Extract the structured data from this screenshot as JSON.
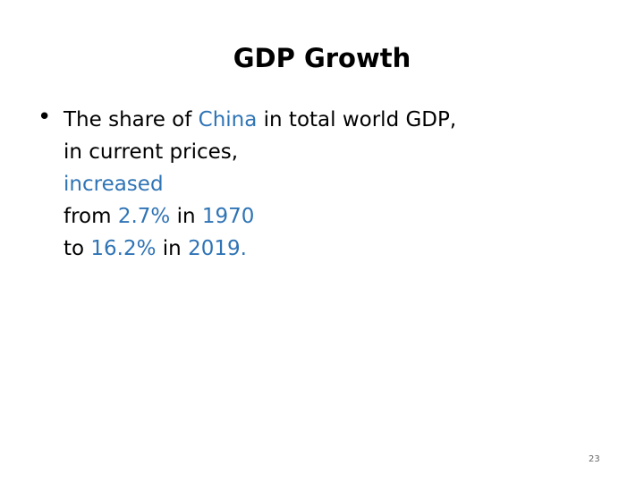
{
  "slide": {
    "title": "GDP Growth",
    "bullet": {
      "lines": [
        [
          {
            "text": "The share of ",
            "color": "#000000"
          },
          {
            "text": "China",
            "color": "#2f74b5"
          },
          {
            "text": " in total world GDP,",
            "color": "#000000"
          }
        ],
        [
          {
            "text": "in current prices,",
            "color": "#000000"
          }
        ],
        [
          {
            "text": "increased",
            "color": "#2f74b5"
          }
        ],
        [
          {
            "text": "from ",
            "color": "#000000"
          },
          {
            "text": "2.7%",
            "color": "#2f74b5"
          },
          {
            "text": " in ",
            "color": "#000000"
          },
          {
            "text": "1970",
            "color": "#2f74b5"
          }
        ],
        [
          {
            "text": "to ",
            "color": "#000000"
          },
          {
            "text": "16.2%",
            "color": "#2f74b5"
          },
          {
            "text": " in ",
            "color": "#000000"
          },
          {
            "text": "2019.",
            "color": "#2f74b5"
          }
        ]
      ]
    },
    "page_number": "23"
  }
}
